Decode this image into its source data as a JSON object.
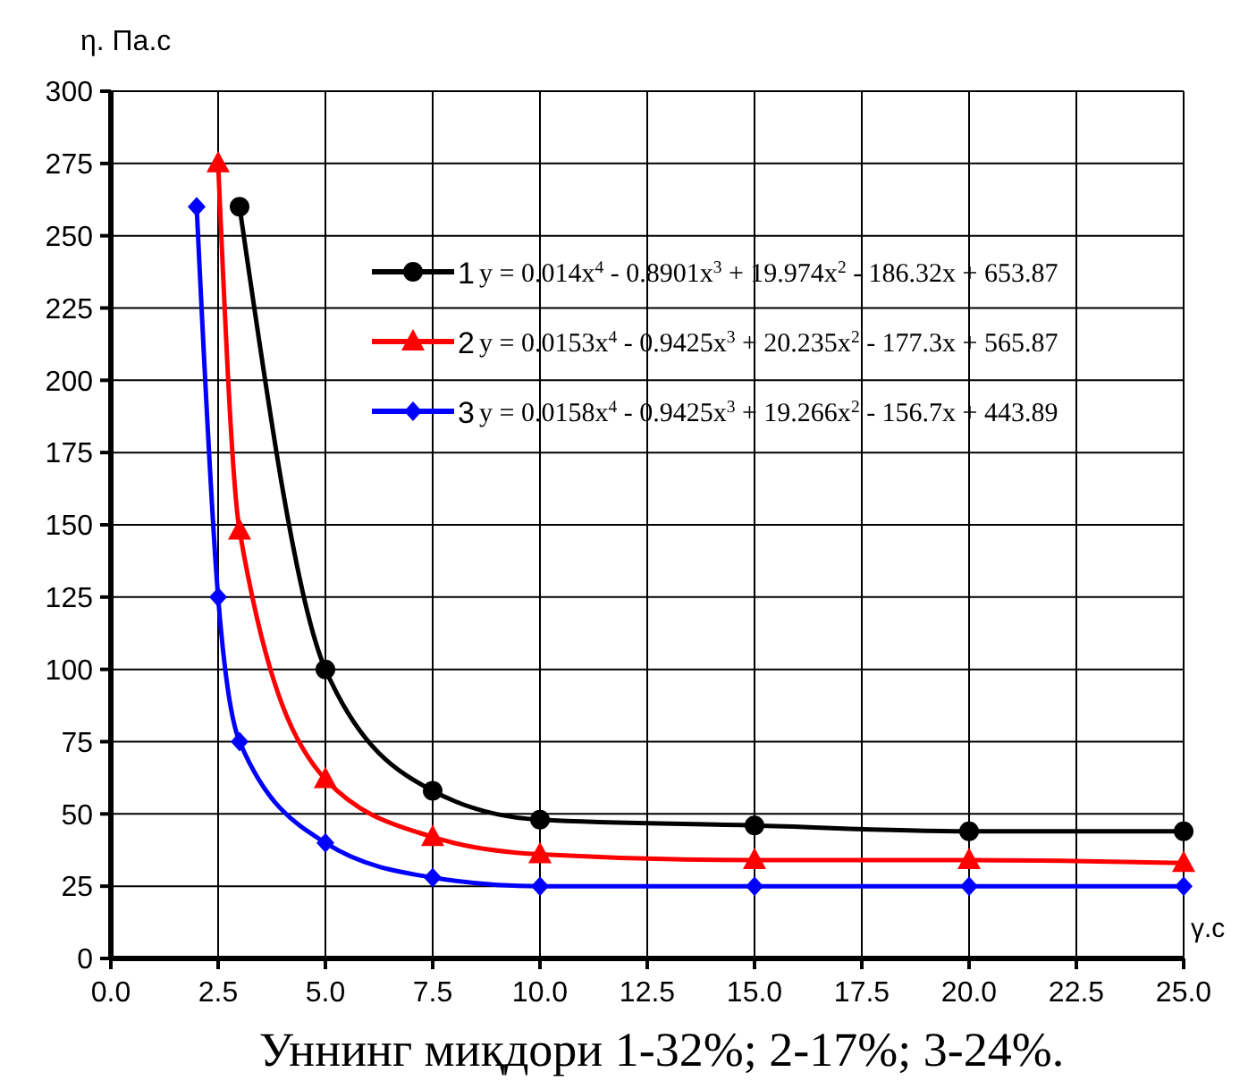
{
  "chart_data": {
    "type": "line",
    "ylabel": "η. Па.с",
    "xlabel": "γ.с",
    "xlim": [
      0,
      25
    ],
    "ylim": [
      0,
      300
    ],
    "xticks": [
      {
        "value": 0,
        "label": "0.0"
      },
      {
        "value": 2.5,
        "label": "2.5"
      },
      {
        "value": 5,
        "label": "5.0"
      },
      {
        "value": 7.5,
        "label": "7.5"
      },
      {
        "value": 10,
        "label": "10.0"
      },
      {
        "value": 12.5,
        "label": "12.5"
      },
      {
        "value": 15,
        "label": "15.0"
      },
      {
        "value": 17.5,
        "label": "17.5"
      },
      {
        "value": 20,
        "label": "20.0"
      },
      {
        "value": 22.5,
        "label": "22.5"
      },
      {
        "value": 25,
        "label": "25.0"
      }
    ],
    "yticks": [
      0,
      25,
      50,
      75,
      100,
      125,
      150,
      175,
      200,
      225,
      250,
      275,
      300
    ],
    "grid": true,
    "legend": "top left",
    "line_style": "solid",
    "series": [
      {
        "name": "1",
        "color": "#000000",
        "marker": "circle",
        "x": [
          3,
          5,
          7.5,
          10,
          15,
          20,
          25
        ],
        "values": [
          260,
          100,
          58,
          48,
          46,
          44,
          44
        ]
      },
      {
        "name": "2",
        "color": "#ff0000",
        "marker": "triangle",
        "x": [
          2.5,
          3,
          5,
          7.5,
          10,
          15,
          20,
          25
        ],
        "values": [
          275,
          148,
          62,
          42,
          36,
          34,
          34,
          33
        ]
      },
      {
        "name": "3",
        "color": "#0000ff",
        "marker": "diamond",
        "x": [
          2,
          2.5,
          3,
          5,
          7.5,
          10,
          15,
          20,
          25
        ],
        "values": [
          260,
          125,
          75,
          40,
          28,
          25,
          25,
          25,
          25
        ]
      }
    ],
    "annotations": [
      "y = 0.014x$^{4}$ - 0.8901x$^{3}$ + 19.974x$^{2}$ - 186.32x + 653.87",
      "y = 0.0153x$^{4}$ - 0.9425x$^{3}$ + 20.235x$^{2}$ - 177.3x + 565.87",
      "y = 0.0158x$^{4}$ - 0.9425x$^{3}$ + 19.266x$^{2}$ - 156.7x + 443.89",
      "Уннинг миқдори 1-32%; 2-17%; 3-24%."
    ]
  }
}
